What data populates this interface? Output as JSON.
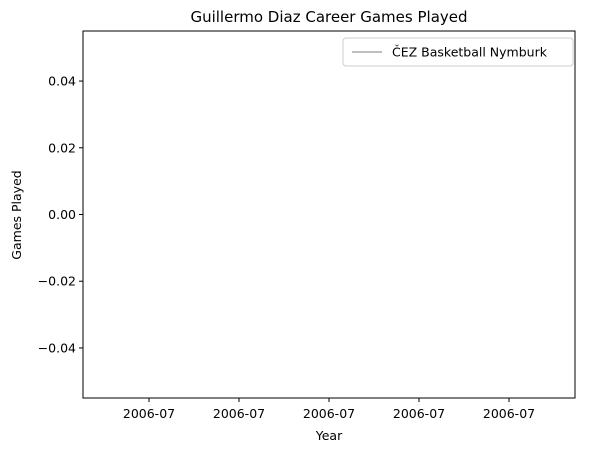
{
  "chart_data": {
    "type": "line",
    "title": "Guillermo Diaz  Career Games Played",
    "xlabel": "Year",
    "ylabel": "Games Played",
    "x_tick_labels": [
      "2006-07",
      "2006-07",
      "2006-07",
      "2006-07",
      "2006-07"
    ],
    "y_tick_labels": [
      "0.04",
      "0.02",
      "0.00",
      "−0.02",
      "−0.04"
    ],
    "y_ticks": [
      0.04,
      0.02,
      0.0,
      -0.02,
      -0.04
    ],
    "ylim": [
      -0.055,
      0.055
    ],
    "grid": false,
    "legend_position": "top-right",
    "series": [
      {
        "name": "ČEZ Basketball Nymburk",
        "color": "#c0c0c0",
        "points": []
      }
    ]
  }
}
